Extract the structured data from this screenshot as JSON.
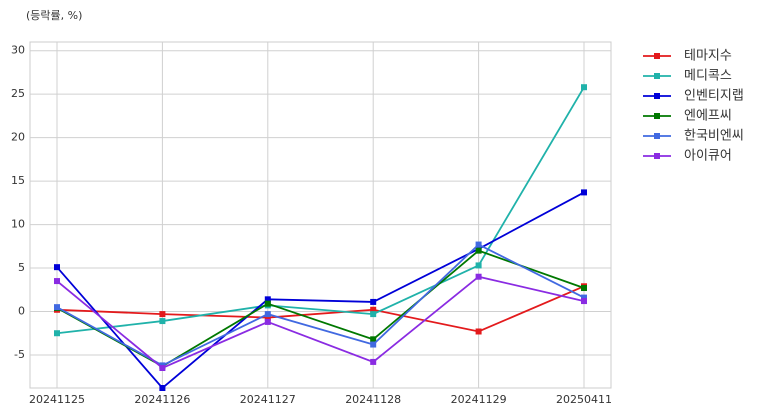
{
  "chart_data": {
    "type": "line",
    "y_label": "(등락률, %)",
    "categories": [
      "20241125",
      "20241126",
      "20241127",
      "20241128",
      "20241129",
      "20250411"
    ],
    "series": [
      {
        "name": "테마지수",
        "color": "#e31a1c",
        "values": [
          0.2,
          -0.3,
          -0.7,
          0.2,
          -2.3,
          2.9
        ]
      },
      {
        "name": "메디콕스",
        "color": "#20b2aa",
        "values": [
          -2.5,
          -1.1,
          0.7,
          -0.3,
          5.3,
          25.8
        ]
      },
      {
        "name": "인벤티지랩",
        "color": "#0000d8",
        "values": [
          5.1,
          -8.8,
          1.4,
          1.1,
          7.2,
          13.7
        ]
      },
      {
        "name": "엔에프씨",
        "color": "#007800",
        "values": [
          0.4,
          -6.3,
          0.9,
          -3.2,
          7.0,
          2.7
        ]
      },
      {
        "name": "한국비엔씨",
        "color": "#4169e1",
        "values": [
          0.5,
          -6.2,
          -0.3,
          -3.8,
          7.7,
          1.6
        ]
      },
      {
        "name": "아이큐어",
        "color": "#8a2be2",
        "values": [
          3.5,
          -6.5,
          -1.2,
          -5.8,
          4.0,
          1.2
        ]
      }
    ],
    "ylim": [
      -8.8,
      31
    ],
    "yticks": [
      -5,
      0,
      5,
      10,
      15,
      20,
      25,
      30
    ],
    "grid": true,
    "legend": "outside-right"
  }
}
